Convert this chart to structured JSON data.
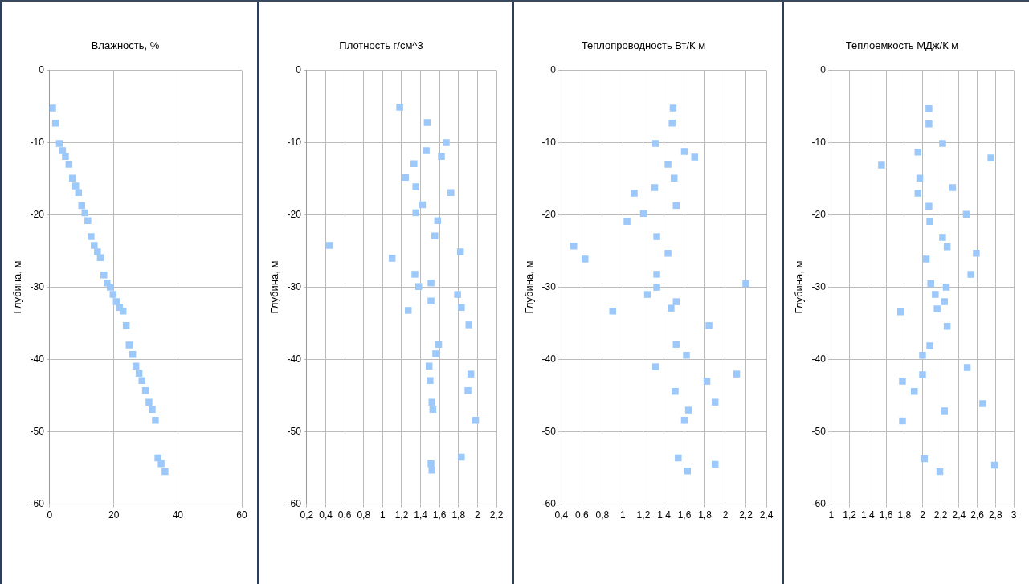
{
  "chart_data": [
    {
      "type": "scatter",
      "title": "Влажность, %",
      "ylabel": "Глубина, м",
      "color": "#9cc8fa",
      "marker": "square",
      "grid": true,
      "x": [
        0.9,
        1.8,
        3.0,
        4.0,
        4.9,
        6.0,
        7.1,
        8.1,
        9.0,
        10.0,
        11.0,
        11.9,
        12.9,
        13.9,
        14.9,
        15.8,
        16.9,
        17.9,
        18.9,
        19.8,
        20.8,
        21.8,
        22.9,
        23.9,
        24.8,
        25.9,
        26.9,
        27.9,
        28.8,
        29.9,
        31.0,
        32.0,
        33.0,
        33.8,
        34.8,
        36.0
      ],
      "values": [
        -5.2,
        -7.3,
        -10.1,
        -11.1,
        -11.9,
        -13.0,
        -14.9,
        -16.0,
        -16.9,
        -18.7,
        -19.7,
        -20.8,
        -23.0,
        -24.2,
        -25.1,
        -25.9,
        -28.3,
        -29.4,
        -30.0,
        -31.0,
        -32.0,
        -32.8,
        -33.3,
        -35.3,
        -38.0,
        -39.3,
        -40.9,
        -41.9,
        -42.9,
        -44.3,
        -45.9,
        -46.9,
        -48.4,
        -53.6,
        -54.4,
        -55.5
      ],
      "xlim": [
        0,
        60
      ],
      "xticks": [
        0,
        20,
        40,
        60
      ],
      "ylim": [
        -60,
        0
      ],
      "yticks": [
        -60,
        -50,
        -40,
        -30,
        -20,
        -10,
        0
      ]
    },
    {
      "type": "scatter",
      "title": "Плотность г/см^3",
      "ylabel": "Глубина, м",
      "color": "#9cc8fa",
      "marker": "square",
      "grid": true,
      "x": [
        1.18,
        1.47,
        1.67,
        1.46,
        1.62,
        1.33,
        1.24,
        1.35,
        1.72,
        1.42,
        1.35,
        1.58,
        1.55,
        0.44,
        1.82,
        1.1,
        1.34,
        1.51,
        1.38,
        1.79,
        1.51,
        1.27,
        1.83,
        1.91,
        1.59,
        1.56,
        1.49,
        1.5,
        1.93,
        1.52,
        1.53,
        1.9,
        1.98,
        1.83,
        1.51,
        1.52
      ],
      "values": [
        -5.1,
        -7.2,
        -10.0,
        -11.1,
        -11.9,
        -12.9,
        -14.8,
        -16.1,
        -16.9,
        -18.6,
        -19.7,
        -20.8,
        -22.9,
        -24.2,
        -25.1,
        -26.0,
        -28.2,
        -29.4,
        -29.9,
        -31.0,
        -31.9,
        -33.2,
        -32.8,
        -35.2,
        -37.9,
        -39.2,
        -40.9,
        -42.9,
        -42.0,
        -45.9,
        -46.9,
        -44.3,
        -48.4,
        -53.5,
        -54.4,
        -55.3
      ],
      "xlim": [
        0.2,
        2.2
      ],
      "xticks": [
        {
          "value": 0.2,
          "label": "0,2"
        },
        {
          "value": 0.4,
          "label": "0,4"
        },
        {
          "value": 0.6,
          "label": "0,6"
        },
        {
          "value": 0.8,
          "label": "0,8"
        },
        1,
        {
          "value": 1.2,
          "label": "1,2"
        },
        {
          "value": 1.4,
          "label": "1,4"
        },
        {
          "value": 1.6,
          "label": "1,6"
        },
        {
          "value": 1.8,
          "label": "1,8"
        },
        2,
        {
          "value": 2.2,
          "label": "2,2"
        }
      ],
      "ylim": [
        -60,
        0
      ],
      "yticks": [
        -60,
        -50,
        -40,
        -30,
        -20,
        -10,
        0
      ]
    },
    {
      "type": "scatter",
      "title": "Теплопроводность Вт/К м",
      "ylabel": "Глубина, м",
      "color": "#9cc8fa",
      "marker": "square",
      "grid": true,
      "x": [
        1.49,
        1.48,
        1.32,
        1.6,
        1.7,
        1.44,
        1.5,
        1.31,
        1.11,
        1.52,
        1.2,
        1.04,
        1.33,
        0.52,
        1.44,
        0.63,
        1.33,
        1.33,
        2.2,
        1.24,
        1.52,
        1.47,
        0.9,
        1.84,
        1.52,
        1.62,
        1.32,
        2.11,
        1.82,
        1.51,
        1.9,
        1.64,
        1.6,
        1.54,
        1.9,
        1.63
      ],
      "values": [
        -5.2,
        -7.3,
        -10.1,
        -11.2,
        -12.0,
        -13.0,
        -14.9,
        -16.2,
        -17.0,
        -18.7,
        -19.8,
        -20.9,
        -23.0,
        -24.3,
        -25.3,
        -26.1,
        -28.2,
        -30.0,
        -29.5,
        -31.0,
        -32.0,
        -32.9,
        -33.3,
        -35.3,
        -37.9,
        -39.4,
        -41.0,
        -42.0,
        -43.0,
        -44.4,
        -45.9,
        -47.0,
        -48.4,
        -53.6,
        -54.5,
        -55.4
      ],
      "xlim": [
        0.4,
        2.4
      ],
      "xticks": [
        {
          "value": 0.4,
          "label": "0,4"
        },
        {
          "value": 0.6,
          "label": "0,6"
        },
        {
          "value": 0.8,
          "label": "0,8"
        },
        1,
        {
          "value": 1.2,
          "label": "1,2"
        },
        {
          "value": 1.4,
          "label": "1,4"
        },
        {
          "value": 1.6,
          "label": "1,6"
        },
        {
          "value": 1.8,
          "label": "1,8"
        },
        2,
        {
          "value": 2.2,
          "label": "2,2"
        },
        {
          "value": 2.4,
          "label": "2,4"
        }
      ],
      "ylim": [
        -60,
        0
      ],
      "yticks": [
        -60,
        -50,
        -40,
        -30,
        -20,
        -10,
        0
      ]
    },
    {
      "type": "scatter",
      "title": "Теплоемкость МДж/К м",
      "ylabel": "Глубина, м",
      "color": "#9cc8fa",
      "marker": "square",
      "grid": true,
      "x": [
        2.07,
        2.07,
        2.22,
        1.95,
        2.75,
        1.55,
        1.97,
        2.33,
        1.95,
        2.07,
        2.48,
        2.08,
        2.22,
        2.27,
        2.59,
        2.04,
        2.53,
        2.09,
        2.26,
        2.14,
        2.24,
        2.16,
        1.76,
        2.27,
        2.08,
        2.0,
        2.49,
        2.0,
        1.78,
        1.91,
        2.66,
        2.24,
        1.78,
        2.02,
        2.79,
        2.19
      ],
      "values": [
        -5.3,
        -7.4,
        -10.1,
        -11.3,
        -12.1,
        -13.1,
        -14.9,
        -16.2,
        -17.0,
        -18.8,
        -19.9,
        -20.9,
        -23.1,
        -24.4,
        -25.3,
        -26.1,
        -28.2,
        -29.5,
        -30.0,
        -31.0,
        -32.0,
        -33.0,
        -33.4,
        -35.4,
        -38.1,
        -39.4,
        -41.1,
        -42.1,
        -43.0,
        -44.4,
        -46.1,
        -47.1,
        -48.5,
        -53.7,
        -54.6,
        -55.5
      ],
      "xlim": [
        1,
        3
      ],
      "xticks": [
        1,
        {
          "value": 1.2,
          "label": "1,2"
        },
        {
          "value": 1.4,
          "label": "1,4"
        },
        {
          "value": 1.6,
          "label": "1,6"
        },
        {
          "value": 1.8,
          "label": "1,8"
        },
        2,
        {
          "value": 2.2,
          "label": "2,2"
        },
        {
          "value": 2.4,
          "label": "2,4"
        },
        {
          "value": 2.6,
          "label": "2,6"
        },
        {
          "value": 2.8,
          "label": "2,8"
        },
        3
      ],
      "ylim": [
        -60,
        0
      ],
      "yticks": [
        -60,
        -50,
        -40,
        -30,
        -20,
        -10,
        0
      ]
    }
  ]
}
